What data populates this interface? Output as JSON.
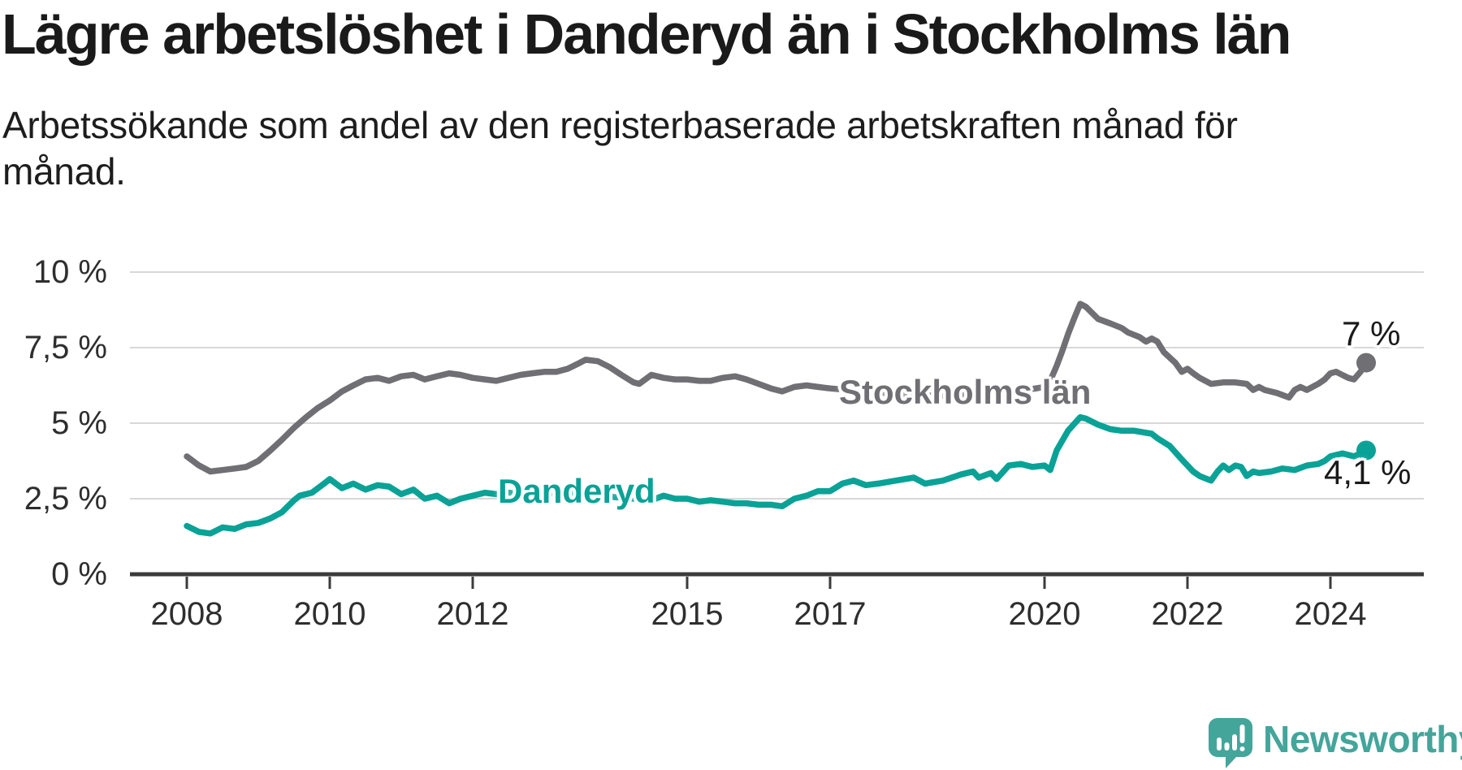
{
  "chart_data": {
    "type": "line",
    "title": "Lägre arbetslöshet i Danderyd än i Stockholms län",
    "subtitle": "Arbetssökande som andel av den registerbaserade arbetskraften månad för månad.",
    "xlabel": "",
    "ylabel": "",
    "ylim": [
      0,
      10
    ],
    "xlim": [
      2007.2,
      2025.3
    ],
    "grid": "horizontal",
    "legend_position": "inline-labels",
    "y_ticks": [
      {
        "value": 0,
        "label": "0 %"
      },
      {
        "value": 2.5,
        "label": "2,5 %"
      },
      {
        "value": 5,
        "label": "5 %"
      },
      {
        "value": 7.5,
        "label": "7,5 %"
      },
      {
        "value": 10,
        "label": "10 %"
      }
    ],
    "x_ticks": [
      {
        "value": 2008,
        "label": "2008"
      },
      {
        "value": 2010,
        "label": "2010"
      },
      {
        "value": 2012,
        "label": "2012"
      },
      {
        "value": 2015,
        "label": "2015"
      },
      {
        "value": 2017,
        "label": "2017"
      },
      {
        "value": 2020,
        "label": "2020"
      },
      {
        "value": 2022,
        "label": "2022"
      },
      {
        "value": 2024,
        "label": "2024"
      }
    ],
    "series": [
      {
        "name": "Stockholms län",
        "color": "#6f6f74",
        "end_label": "7 %",
        "end_value": 7.0,
        "points": [
          [
            2008,
            3.9
          ],
          [
            2008.17,
            3.6
          ],
          [
            2008.33,
            3.4
          ],
          [
            2008.5,
            3.45
          ],
          [
            2008.67,
            3.5
          ],
          [
            2008.83,
            3.55
          ],
          [
            2009,
            3.75
          ],
          [
            2009.17,
            4.1
          ],
          [
            2009.33,
            4.45
          ],
          [
            2009.5,
            4.85
          ],
          [
            2009.67,
            5.2
          ],
          [
            2009.83,
            5.5
          ],
          [
            2010,
            5.75
          ],
          [
            2010.17,
            6.05
          ],
          [
            2010.33,
            6.25
          ],
          [
            2010.5,
            6.45
          ],
          [
            2010.67,
            6.5
          ],
          [
            2010.83,
            6.4
          ],
          [
            2011,
            6.55
          ],
          [
            2011.17,
            6.6
          ],
          [
            2011.33,
            6.45
          ],
          [
            2011.5,
            6.55
          ],
          [
            2011.67,
            6.65
          ],
          [
            2011.83,
            6.6
          ],
          [
            2012,
            6.5
          ],
          [
            2012.17,
            6.45
          ],
          [
            2012.33,
            6.4
          ],
          [
            2012.5,
            6.5
          ],
          [
            2012.67,
            6.6
          ],
          [
            2012.83,
            6.65
          ],
          [
            2013,
            6.7
          ],
          [
            2013.17,
            6.7
          ],
          [
            2013.33,
            6.8
          ],
          [
            2013.5,
            7.0
          ],
          [
            2013.58,
            7.1
          ],
          [
            2013.75,
            7.05
          ],
          [
            2013.92,
            6.85
          ],
          [
            2014.08,
            6.6
          ],
          [
            2014.25,
            6.35
          ],
          [
            2014.33,
            6.3
          ],
          [
            2014.5,
            6.6
          ],
          [
            2014.67,
            6.5
          ],
          [
            2014.83,
            6.45
          ],
          [
            2015,
            6.45
          ],
          [
            2015.17,
            6.4
          ],
          [
            2015.33,
            6.4
          ],
          [
            2015.5,
            6.5
          ],
          [
            2015.67,
            6.55
          ],
          [
            2015.83,
            6.45
          ],
          [
            2016,
            6.3
          ],
          [
            2016.17,
            6.15
          ],
          [
            2016.33,
            6.05
          ],
          [
            2016.5,
            6.2
          ],
          [
            2016.67,
            6.25
          ],
          [
            2016.83,
            6.2
          ],
          [
            2017,
            6.15
          ],
          [
            2017.25,
            6.1
          ],
          [
            2017.5,
            6.05
          ],
          [
            2017.75,
            6.0
          ],
          [
            2018,
            5.95
          ],
          [
            2018.25,
            5.95
          ],
          [
            2018.5,
            5.9
          ],
          [
            2018.75,
            5.9
          ],
          [
            2019,
            5.95
          ],
          [
            2019.25,
            6.0
          ],
          [
            2019.5,
            6.05
          ],
          [
            2019.75,
            6.1
          ],
          [
            2020,
            6.2
          ],
          [
            2020.08,
            6.4
          ],
          [
            2020.17,
            6.9
          ],
          [
            2020.25,
            7.4
          ],
          [
            2020.33,
            7.95
          ],
          [
            2020.42,
            8.5
          ],
          [
            2020.5,
            8.95
          ],
          [
            2020.58,
            8.85
          ],
          [
            2020.75,
            8.45
          ],
          [
            2020.92,
            8.3
          ],
          [
            2021.08,
            8.15
          ],
          [
            2021.17,
            8.0
          ],
          [
            2021.33,
            7.85
          ],
          [
            2021.42,
            7.7
          ],
          [
            2021.5,
            7.8
          ],
          [
            2021.58,
            7.7
          ],
          [
            2021.67,
            7.35
          ],
          [
            2021.83,
            7.0
          ],
          [
            2021.92,
            6.7
          ],
          [
            2022,
            6.8
          ],
          [
            2022.08,
            6.65
          ],
          [
            2022.17,
            6.5
          ],
          [
            2022.33,
            6.3
          ],
          [
            2022.5,
            6.35
          ],
          [
            2022.67,
            6.35
          ],
          [
            2022.83,
            6.3
          ],
          [
            2022.92,
            6.1
          ],
          [
            2023,
            6.2
          ],
          [
            2023.08,
            6.1
          ],
          [
            2023.25,
            6.0
          ],
          [
            2023.42,
            5.85
          ],
          [
            2023.5,
            6.1
          ],
          [
            2023.58,
            6.2
          ],
          [
            2023.67,
            6.1
          ],
          [
            2023.83,
            6.3
          ],
          [
            2023.92,
            6.45
          ],
          [
            2024,
            6.65
          ],
          [
            2024.08,
            6.7
          ],
          [
            2024.25,
            6.5
          ],
          [
            2024.33,
            6.45
          ],
          [
            2024.42,
            6.7
          ],
          [
            2024.5,
            7.0
          ]
        ]
      },
      {
        "name": "Danderyd",
        "color": "#0aa296",
        "end_label": "4,1 %",
        "end_value": 4.1,
        "points": [
          [
            2008,
            1.6
          ],
          [
            2008.17,
            1.4
          ],
          [
            2008.33,
            1.35
          ],
          [
            2008.5,
            1.55
          ],
          [
            2008.67,
            1.5
          ],
          [
            2008.83,
            1.65
          ],
          [
            2009,
            1.7
          ],
          [
            2009.17,
            1.85
          ],
          [
            2009.33,
            2.05
          ],
          [
            2009.5,
            2.45
          ],
          [
            2009.58,
            2.6
          ],
          [
            2009.75,
            2.7
          ],
          [
            2009.92,
            3.0
          ],
          [
            2010,
            3.15
          ],
          [
            2010.17,
            2.85
          ],
          [
            2010.33,
            3.0
          ],
          [
            2010.5,
            2.8
          ],
          [
            2010.67,
            2.95
          ],
          [
            2010.83,
            2.9
          ],
          [
            2011,
            2.65
          ],
          [
            2011.17,
            2.8
          ],
          [
            2011.33,
            2.5
          ],
          [
            2011.5,
            2.6
          ],
          [
            2011.67,
            2.35
          ],
          [
            2011.83,
            2.5
          ],
          [
            2012,
            2.6
          ],
          [
            2012.17,
            2.7
          ],
          [
            2012.33,
            2.65
          ],
          [
            2012.5,
            2.7
          ],
          [
            2012.67,
            2.65
          ],
          [
            2012.83,
            2.6
          ],
          [
            2013,
            2.65
          ],
          [
            2013.25,
            2.7
          ],
          [
            2013.5,
            2.65
          ],
          [
            2013.75,
            2.6
          ],
          [
            2014,
            2.55
          ],
          [
            2014.25,
            2.5
          ],
          [
            2014.5,
            2.45
          ],
          [
            2014.67,
            2.6
          ],
          [
            2014.83,
            2.5
          ],
          [
            2015,
            2.5
          ],
          [
            2015.17,
            2.4
          ],
          [
            2015.33,
            2.45
          ],
          [
            2015.5,
            2.4
          ],
          [
            2015.67,
            2.35
          ],
          [
            2015.83,
            2.35
          ],
          [
            2016,
            2.3
          ],
          [
            2016.17,
            2.3
          ],
          [
            2016.33,
            2.25
          ],
          [
            2016.5,
            2.5
          ],
          [
            2016.67,
            2.6
          ],
          [
            2016.83,
            2.75
          ],
          [
            2017,
            2.75
          ],
          [
            2017.17,
            3.0
          ],
          [
            2017.33,
            3.1
          ],
          [
            2017.5,
            2.95
          ],
          [
            2017.67,
            3.0
          ],
          [
            2017.92,
            3.1
          ],
          [
            2018.17,
            3.2
          ],
          [
            2018.33,
            3.0
          ],
          [
            2018.58,
            3.1
          ],
          [
            2018.83,
            3.3
          ],
          [
            2019,
            3.4
          ],
          [
            2019.08,
            3.2
          ],
          [
            2019.25,
            3.35
          ],
          [
            2019.33,
            3.15
          ],
          [
            2019.5,
            3.6
          ],
          [
            2019.67,
            3.65
          ],
          [
            2019.83,
            3.55
          ],
          [
            2020,
            3.6
          ],
          [
            2020.08,
            3.45
          ],
          [
            2020.17,
            4.1
          ],
          [
            2020.33,
            4.75
          ],
          [
            2020.5,
            5.2
          ],
          [
            2020.58,
            5.15
          ],
          [
            2020.75,
            4.95
          ],
          [
            2020.92,
            4.8
          ],
          [
            2021.08,
            4.75
          ],
          [
            2021.25,
            4.75
          ],
          [
            2021.5,
            4.65
          ],
          [
            2021.58,
            4.5
          ],
          [
            2021.75,
            4.25
          ],
          [
            2021.92,
            3.8
          ],
          [
            2022,
            3.6
          ],
          [
            2022.08,
            3.4
          ],
          [
            2022.17,
            3.25
          ],
          [
            2022.33,
            3.1
          ],
          [
            2022.42,
            3.4
          ],
          [
            2022.5,
            3.6
          ],
          [
            2022.58,
            3.45
          ],
          [
            2022.67,
            3.6
          ],
          [
            2022.75,
            3.55
          ],
          [
            2022.83,
            3.25
          ],
          [
            2022.92,
            3.4
          ],
          [
            2023,
            3.35
          ],
          [
            2023.17,
            3.4
          ],
          [
            2023.33,
            3.5
          ],
          [
            2023.5,
            3.45
          ],
          [
            2023.67,
            3.6
          ],
          [
            2023.83,
            3.65
          ],
          [
            2023.92,
            3.75
          ],
          [
            2024,
            3.9
          ],
          [
            2024.08,
            3.95
          ],
          [
            2024.17,
            4.0
          ],
          [
            2024.33,
            3.9
          ],
          [
            2024.42,
            4.0
          ],
          [
            2024.5,
            4.1
          ]
        ]
      }
    ],
    "colors": {
      "grid": "#d8d8d8",
      "axis": "#3b3b3b",
      "tick_text": "#2e2e2e",
      "end_label_text": "#1a1a1a"
    }
  },
  "footer": {
    "brand": "Newsworthy",
    "brand_color": "#44a59b",
    "logo_icon": "newsworthy-chart-bubble-icon"
  }
}
